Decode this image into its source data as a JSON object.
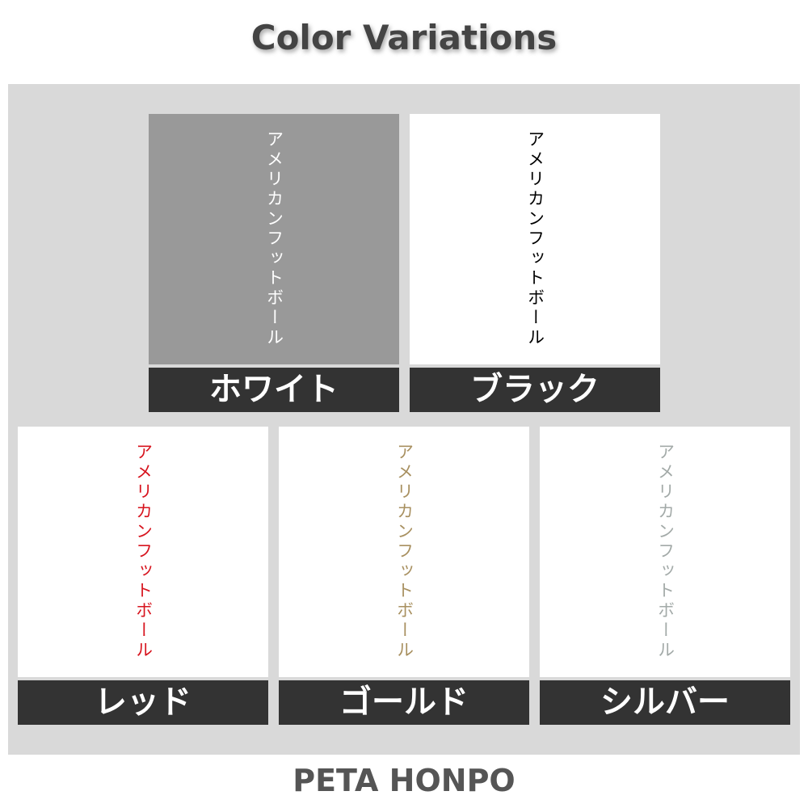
{
  "title": "Color Variations",
  "sample_text": "アメリカンフットボール",
  "variations": [
    {
      "label": "ホワイト",
      "text_color": "#ffffff",
      "background": "#999999"
    },
    {
      "label": "ブラック",
      "text_color": "#000000",
      "background": "#ffffff"
    },
    {
      "label": "レッド",
      "text_color": "#d7141e",
      "background": "#ffffff"
    },
    {
      "label": "ゴールド",
      "text_color": "#a89060",
      "background": "#ffffff"
    },
    {
      "label": "シルバー",
      "text_color": "#a3aaa8",
      "background": "#ffffff"
    }
  ],
  "footer": "PETA HONPO"
}
